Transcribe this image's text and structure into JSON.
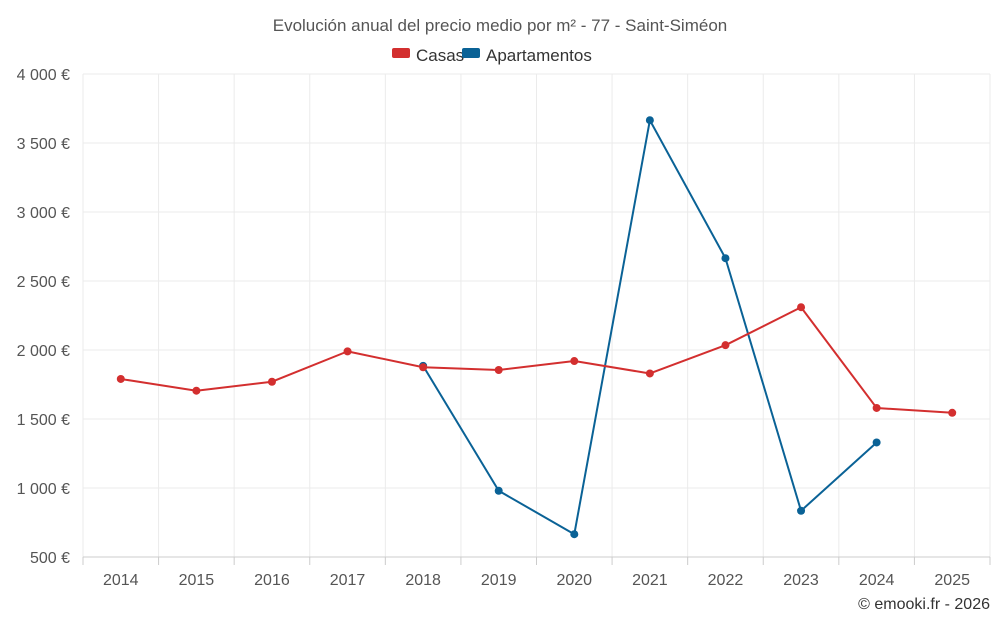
{
  "chart_data": {
    "type": "line",
    "title": "Evolución anual del precio medio por m² - 77 - Saint-Siméon",
    "categories": [
      "2014",
      "2015",
      "2016",
      "2017",
      "2018",
      "2019",
      "2020",
      "2021",
      "2022",
      "2023",
      "2024",
      "2025"
    ],
    "series": [
      {
        "name": "Casas",
        "color": "#d32f2f",
        "values": [
          1790,
          1705,
          1770,
          1990,
          1875,
          1855,
          1920,
          1830,
          2035,
          2310,
          1580,
          1545
        ]
      },
      {
        "name": "Apartamentos",
        "color": "#0a6296",
        "values": [
          null,
          null,
          null,
          null,
          1885,
          980,
          665,
          3665,
          2665,
          835,
          1330,
          null
        ]
      }
    ],
    "ylim": [
      500,
      4000
    ],
    "yticks": [
      500,
      1000,
      1500,
      2000,
      2500,
      3000,
      3500,
      4000
    ],
    "ytick_labels": [
      "500 €",
      "1 000 €",
      "1 500 €",
      "2 000 €",
      "2 500 €",
      "3 000 €",
      "3 500 €",
      "4 000 €"
    ],
    "legend_position": "top-center",
    "grid": true
  },
  "credit": "© emooki.fr - 2026"
}
